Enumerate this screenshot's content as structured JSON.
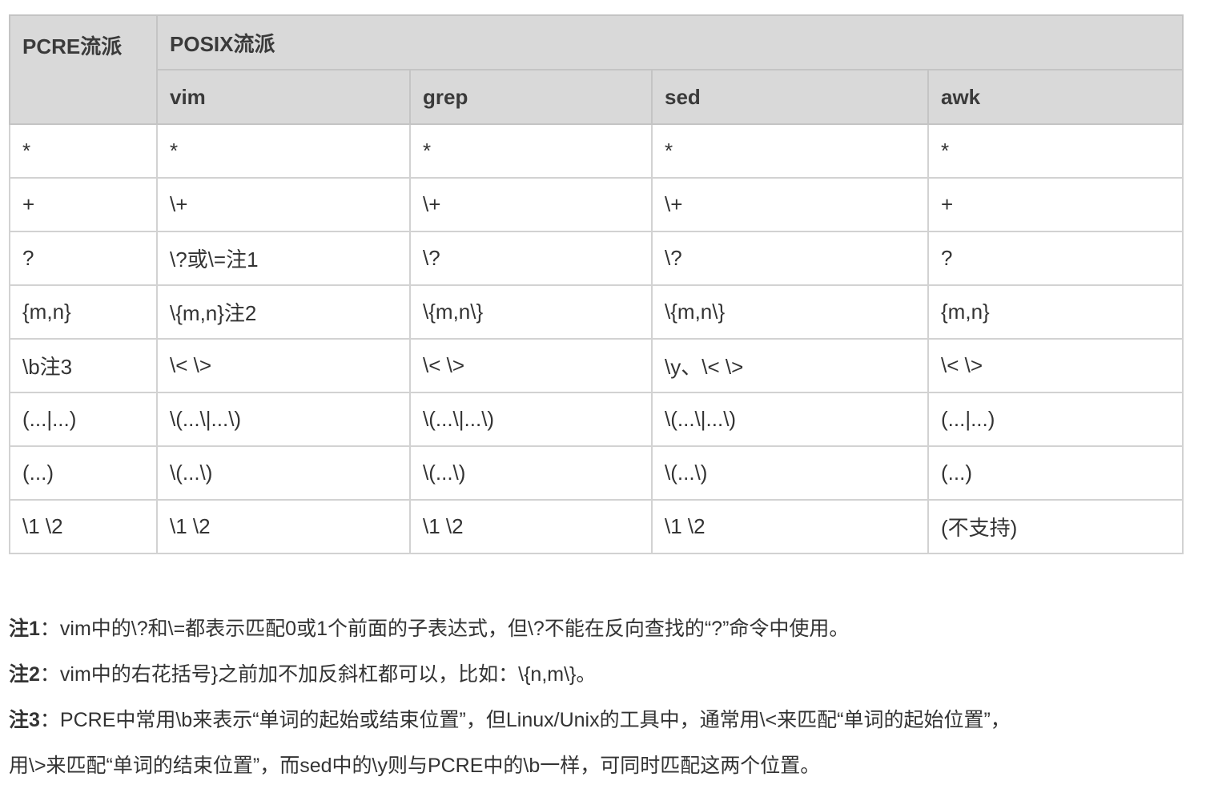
{
  "table": {
    "header_pcre": "PCRE流派",
    "header_posix": "POSIX流派",
    "subheaders": [
      "vim",
      "grep",
      "sed",
      "awk"
    ],
    "rows": [
      [
        "*",
        "*",
        "*",
        "*",
        "*"
      ],
      [
        "+",
        "\\+",
        "\\+",
        "\\+",
        "+"
      ],
      [
        "?",
        "\\?或\\=注1",
        "\\?",
        "\\?",
        "?"
      ],
      [
        "{m,n}",
        "\\{m,n}注2",
        "\\{m,n\\}",
        "\\{m,n\\}",
        "{m,n}"
      ],
      [
        "\\b注3",
        "\\< \\>",
        "\\< \\>",
        "\\y、\\< \\>",
        "\\< \\>"
      ],
      [
        "(...|...)",
        "\\(...\\|...\\)",
        "\\(...\\|...\\)",
        "\\(...\\|...\\)",
        "(...|...)"
      ],
      [
        "(...)",
        "\\(...\\)",
        "\\(...\\)",
        "\\(...\\)",
        "(...)"
      ],
      [
        "\\1 \\2",
        "\\1 \\2",
        "\\1 \\2",
        "\\1 \\2",
        "(不支持)"
      ]
    ]
  },
  "notes": [
    {
      "label": "注1",
      "text": "：vim中的\\?和\\=都表示匹配0或1个前面的子表达式，但\\?不能在反向查找的“?”命令中使用。"
    },
    {
      "label": "注2",
      "text": "：vim中的右花括号}之前加不加反斜杠都可以，比如：\\{n,m\\}。"
    },
    {
      "label": "注3",
      "text": "：PCRE中常用\\b来表示“单词的起始或结束位置”，但Linux/Unix的工具中，通常用\\<来匹配“单词的起始位置”，"
    },
    {
      "label": "",
      "text": "用\\>来匹配“单词的结束位置”，而sed中的\\y则与PCRE中的\\b一样，可同时匹配这两个位置。"
    }
  ]
}
